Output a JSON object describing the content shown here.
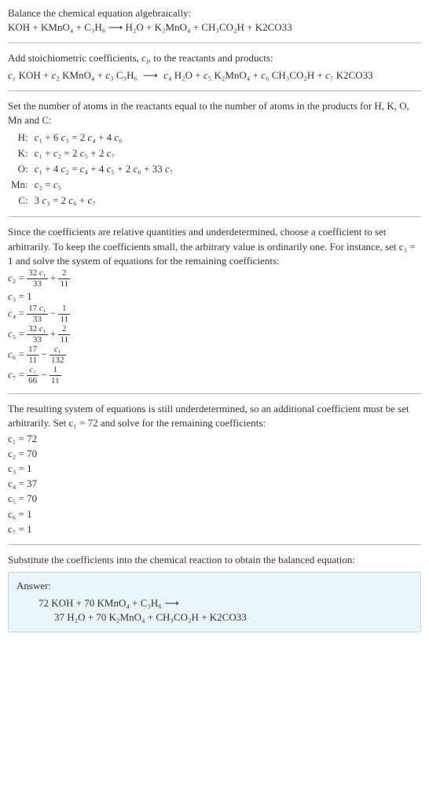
{
  "intro": {
    "line1": "Balance the chemical equation algebraically:",
    "equation": "KOH + KMnO₄ + C₃H₆  ⟶  H₂O + K₂MnO₄ + CH₃CO₂H + K2CO33"
  },
  "stoich": {
    "line1": "Add stoichiometric coefficients, cᵢ, to the reactants and products:",
    "equation": "c₁ KOH + c₂ KMnO₄ + c₃ C₃H₆  ⟶  c₄ H₂O + c₅ K₂MnO₄ + c₆ CH₃CO₂H + c₇ K2CO33"
  },
  "atoms": {
    "intro": "Set the number of atoms in the reactants equal to the number of atoms in the products for H, K, O, Mn and C:",
    "rows": [
      {
        "el": "H:",
        "eq": "c₁ + 6 c₃ = 2 c₄ + 4 c₆"
      },
      {
        "el": "K:",
        "eq": "c₁ + c₂ = 2 c₅ + 2 c₇"
      },
      {
        "el": "O:",
        "eq": "c₁ + 4 c₂ = c₄ + 4 c₅ + 2 c₆ + 33 c₇"
      },
      {
        "el": "Mn:",
        "eq": "c₂ = c₅"
      },
      {
        "el": "C:",
        "eq": "3 c₃ = 2 c₆ + c₇"
      }
    ]
  },
  "underdet": {
    "text": "Since the coefficients are relative quantities and underdetermined, choose a coefficient to set arbitrarily. To keep the coefficients small, the arbitrary value is ordinarily one. For instance, set c₃ = 1 and solve the system of equations for the remaining coefficients:",
    "c2": {
      "lhs": "c₂ = ",
      "num1": "32 c₁",
      "den1": "33",
      "plus": " + ",
      "num2": "2",
      "den2": "11"
    },
    "c3": "c₃ = 1",
    "c4": {
      "lhs": "c₄ = ",
      "num1": "17 c₁",
      "den1": "33",
      "minus": " − ",
      "num2": "1",
      "den2": "11"
    },
    "c5": {
      "lhs": "c₅ = ",
      "num1": "32 c₁",
      "den1": "33",
      "plus": " + ",
      "num2": "2",
      "den2": "11"
    },
    "c6": {
      "lhs": "c₆ = ",
      "num1": "17",
      "den1": "11",
      "minus": " − ",
      "num2": "c₁",
      "den2": "132"
    },
    "c7": {
      "lhs": "c₇ = ",
      "num1": "c₁",
      "den1": "66",
      "minus": " − ",
      "num2": "1",
      "den2": "11"
    }
  },
  "resolve": {
    "text": "The resulting system of equations is still underdetermined, so an additional coefficient must be set arbitrarily. Set c₁ = 72 and solve for the remaining coefficients:",
    "vals": [
      "c₁ = 72",
      "c₂ = 70",
      "c₃ = 1",
      "c₄ = 37",
      "c₅ = 70",
      "c₆ = 1",
      "c₇ = 1"
    ]
  },
  "final": {
    "text": "Substitute the coefficients into the chemical reaction to obtain the balanced equation:",
    "answer_label": "Answer:",
    "line1": "72 KOH + 70 KMnO₄ + C₃H₆  ⟶",
    "line2": "37 H₂O + 70 K₂MnO₄ + CH₃CO₂H + K2CO33"
  }
}
